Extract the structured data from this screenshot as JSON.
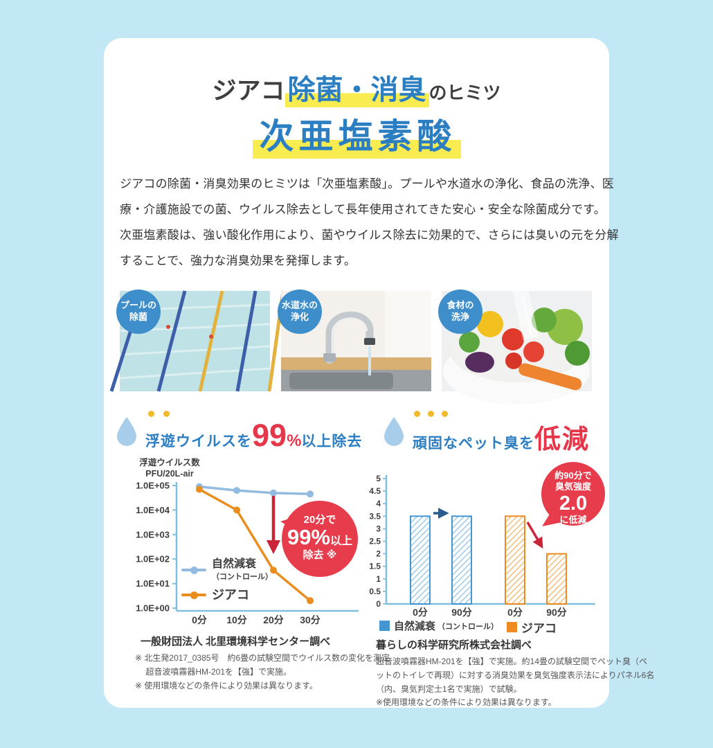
{
  "colors": {
    "background": "#c3e8f5",
    "card": "#ffffff",
    "title_blue": "#2b7ec2",
    "title_dark": "#3e3e3e",
    "highlight_yellow": "#f8ec51",
    "accent_red": "#e6374a",
    "dot_yellow": "#f0ba2c",
    "drop_blue": "#a7cdeb",
    "axis_blue": "#7fbfe0",
    "line_series_blue": "#93bbe2",
    "line_series_orange": "#e98d1e",
    "bar_series_blue": "#4396d2",
    "bar_series_orange": "#ed8a21",
    "arrow_dark_blue": "#2a5d8f",
    "arrow_red": "#cb2337"
  },
  "title": {
    "prefix": "ジアコ",
    "highlight": "除菌・消臭",
    "suffix": "のヒミツ",
    "line2": "次亜塩素酸"
  },
  "intro_lines": [
    "ジアコの除菌・消臭効果のヒミツは「次亜塩素酸」。プールや水道水の浄化、食品の洗浄、医",
    "療・介護施設での菌、ウイルス除去として長年使用されてきた安心・安全な除菌成分です。",
    "次亜塩素酸は、強い酸化作用により、菌やウイルス除去に効果的で、さらには臭いの元を分解",
    "することで、強力な消臭効果を発揮します。"
  ],
  "photos": [
    {
      "label_line1": "プールの",
      "label_line2": "除菌"
    },
    {
      "label_line1": "水道水の",
      "label_line2": "浄化"
    },
    {
      "label_line1": "食材の",
      "label_line2": "洗浄"
    }
  ],
  "section_left": {
    "prefix": "浮遊ウイルスを",
    "big": "99",
    "percent": "%",
    "suffix": "以上除去"
  },
  "section_right": {
    "prefix": "頑固なペット臭を",
    "big": "低減"
  },
  "chart_data": [
    {
      "type": "line",
      "title": "浮遊ウイルスを99%以上除去",
      "ylabel_line1": "浮遊ウイルス数",
      "ylabel_line2": "PFU/20L-air",
      "y_scale": "log10",
      "y_tick_labels": [
        "1.0E+05",
        "1.0E+04",
        "1.0E+03",
        "1.0E+02",
        "1.0E+01",
        "1.0E+00"
      ],
      "x_labels": [
        "0分",
        "10分",
        "20分",
        "30分"
      ],
      "series": [
        {
          "name": "自然減衰",
          "name_sub": "（コントロール）",
          "color": "#93bbe2",
          "values": [
            90000,
            63000,
            50000,
            45000
          ]
        },
        {
          "name": "ジアコ",
          "name_sub": "",
          "color": "#e98d1e",
          "values": [
            70000,
            10000,
            35,
            2
          ]
        }
      ],
      "annotation": "20分で99%以上除去※",
      "legend_position": "inside-left",
      "grid": false
    },
    {
      "type": "bar",
      "title": "頑固なペット臭を低減",
      "ylim": [
        0,
        5
      ],
      "y_tick_labels": [
        "5",
        "4.5",
        "4",
        "3.5",
        "3",
        "2.5",
        "2",
        "1.5",
        "1",
        "0.5",
        "0"
      ],
      "x_labels": [
        "0分",
        "90分",
        "0分",
        "90分"
      ],
      "series": [
        {
          "name": "自然減衰",
          "name_sub": "（コントロール）",
          "color": "#4396d2",
          "values": [
            3.5,
            3.5
          ]
        },
        {
          "name": "ジアコ",
          "name_sub": "",
          "color": "#ed8a21",
          "values": [
            3.5,
            2.0
          ]
        }
      ],
      "annotation": "約90分で臭気強度2.0に低減",
      "legend_position": "bottom",
      "grid": false
    }
  ],
  "callout_left": {
    "line1": "20分で",
    "big": "99%",
    "big_suffix": "以上",
    "line2": "除去 ※"
  },
  "callout_right": {
    "line1": "約90分で",
    "line2": "臭気強度",
    "big": "2.0",
    "line3": "に低減"
  },
  "source_left": {
    "title": "一般財団法人 北里環境科学センター調べ",
    "lines": [
      "※ 北生発2017_0385号　約6畳の試験空間でウイルス数の変化を測定",
      "　 超音波噴霧器HM-201を【強】で実施。",
      "※ 使用環境などの条件により効果は異なります。"
    ]
  },
  "source_right": {
    "title": "暮らしの科学研究所株式会社調べ",
    "lines": [
      "超音波噴霧器HM-201を【強】で実施。約14畳の試験空間でペット臭（ペ",
      "ットのトイレで再現）に対する消臭効果を臭気強度表示法によりパネル6名",
      "（内、臭気判定士1名で実施）で試験。",
      "※使用環境などの条件により効果は異なります。"
    ]
  }
}
